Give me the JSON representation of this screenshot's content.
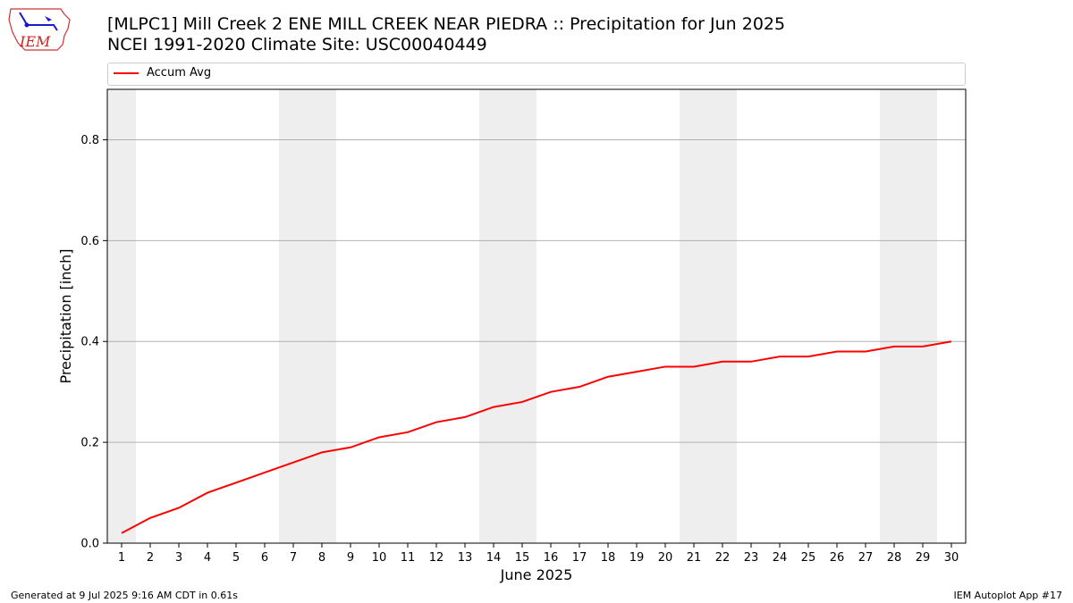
{
  "logo": {
    "text": "IEM"
  },
  "title": {
    "line1": "[MLPC1] Mill Creek 2 ENE MILL CREEK NEAR PIEDRA :: Precipitation for Jun 2025",
    "line2": "NCEI 1991-2020 Climate Site: USC00040449"
  },
  "footer": {
    "left": "Generated at 9 Jul 2025 9:16 AM CDT in 0.61s",
    "right": "IEM Autoplot App #17"
  },
  "colors": {
    "series": "#ff0000",
    "weekend_band": "#eeeeee",
    "grid": "#b0b0b0"
  },
  "chart_data": {
    "type": "line",
    "xlabel": "June 2025",
    "ylabel": "Precipitation [inch]",
    "x": [
      1,
      2,
      3,
      4,
      5,
      6,
      7,
      8,
      9,
      10,
      11,
      12,
      13,
      14,
      15,
      16,
      17,
      18,
      19,
      20,
      21,
      22,
      23,
      24,
      25,
      26,
      27,
      28,
      29,
      30
    ],
    "xlim": [
      0.5,
      30.5
    ],
    "ylim": [
      0,
      0.9
    ],
    "yticks": [
      0.0,
      0.2,
      0.4,
      0.6,
      0.8
    ],
    "ytick_labels": [
      "0.0",
      "0.2",
      "0.4",
      "0.6",
      "0.8"
    ],
    "grid": "y-major",
    "legend_placement": "top, above plot",
    "weekend_bands": [
      [
        0.5,
        1.5
      ],
      [
        6.5,
        8.5
      ],
      [
        13.5,
        15.5
      ],
      [
        20.5,
        22.5
      ],
      [
        27.5,
        29.5
      ]
    ],
    "series": [
      {
        "name": "Accum Avg",
        "color": "#ff0000",
        "values": [
          0.02,
          0.05,
          0.07,
          0.1,
          0.12,
          0.14,
          0.16,
          0.18,
          0.19,
          0.21,
          0.22,
          0.24,
          0.25,
          0.27,
          0.28,
          0.3,
          0.31,
          0.33,
          0.34,
          0.35,
          0.35,
          0.36,
          0.36,
          0.37,
          0.37,
          0.38,
          0.38,
          0.39,
          0.39,
          0.4
        ]
      }
    ]
  }
}
